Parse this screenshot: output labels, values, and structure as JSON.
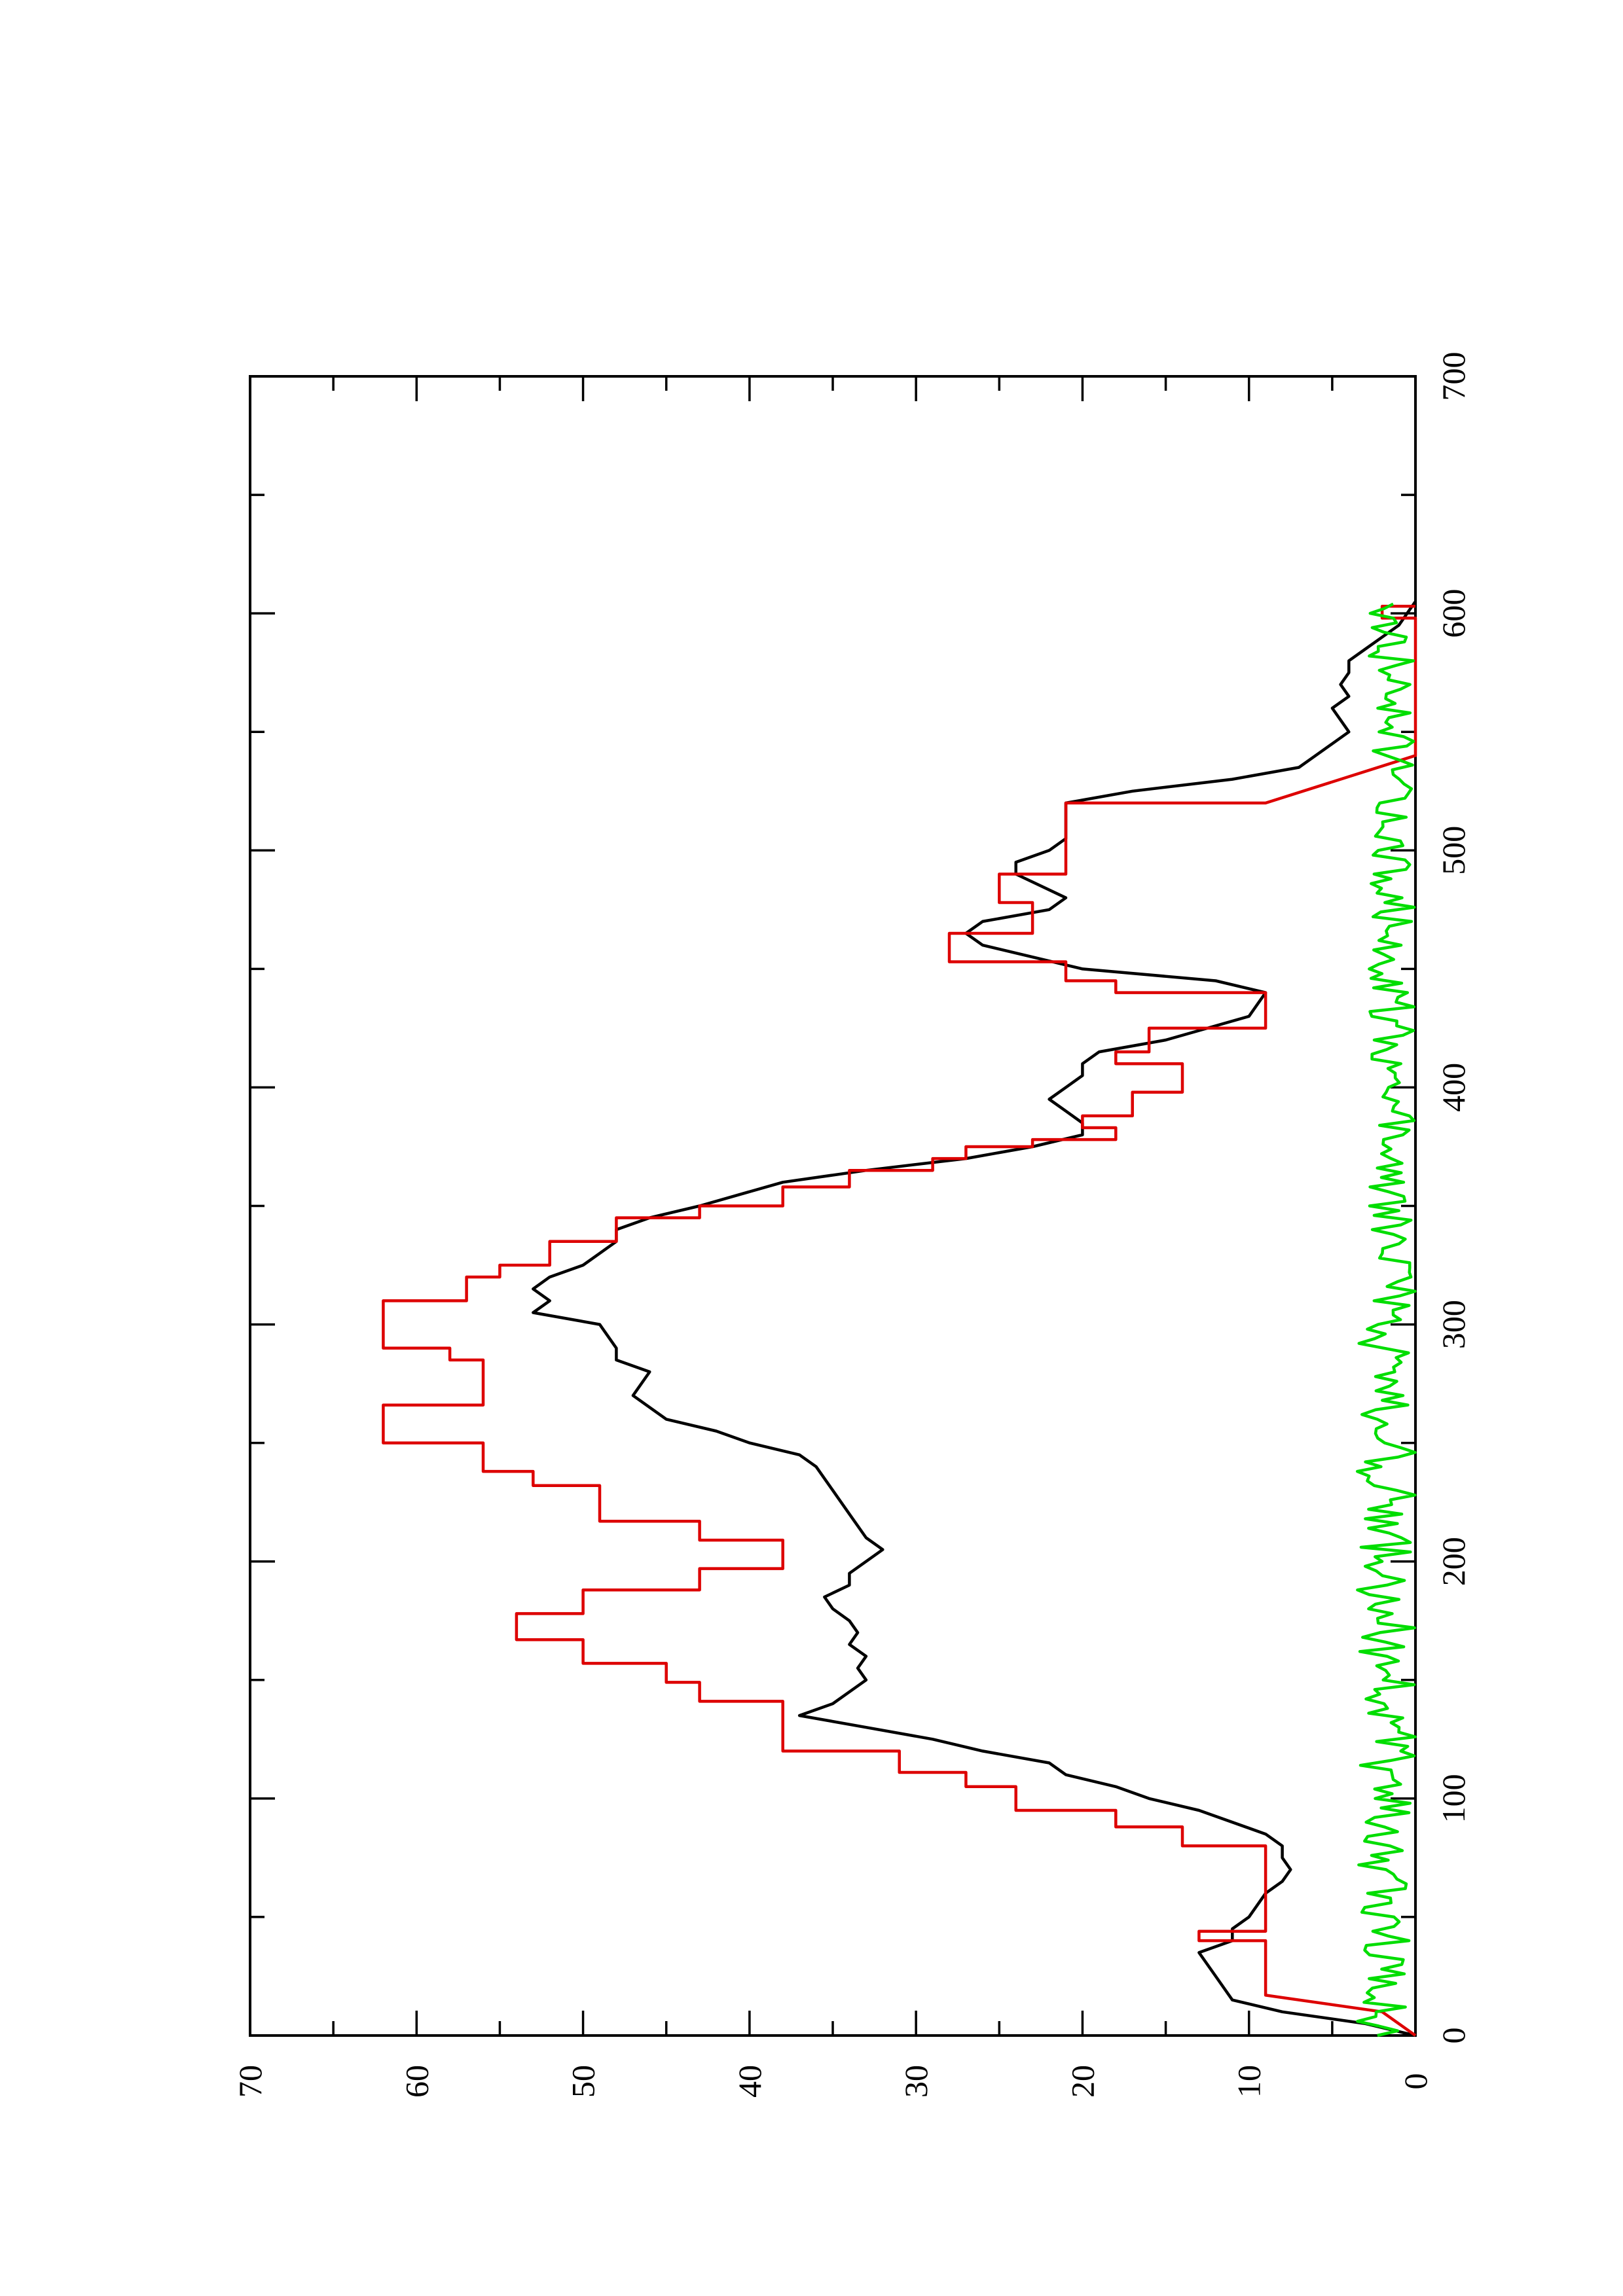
{
  "chart_data": {
    "type": "line",
    "title": "",
    "xlabel": "",
    "ylabel": "",
    "orientation": "rotated-90-counterclockwise",
    "xlim": [
      0,
      700
    ],
    "ylim": [
      0,
      70
    ],
    "x_ticks": [
      "0",
      "100",
      "200",
      "300",
      "400",
      "500",
      "600",
      "700"
    ],
    "y_ticks": [
      "0",
      "10",
      "20",
      "30",
      "40",
      "50",
      "60",
      "70"
    ],
    "grid": false,
    "legend": "none",
    "series": [
      {
        "color": "#000000",
        "style": "smooth",
        "points": [
          [
            0,
            0
          ],
          [
            5,
            3
          ],
          [
            10,
            8
          ],
          [
            15,
            11
          ],
          [
            25,
            12
          ],
          [
            35,
            13
          ],
          [
            40,
            11
          ],
          [
            45,
            11
          ],
          [
            50,
            10
          ],
          [
            55,
            9.5
          ],
          [
            60,
            9
          ],
          [
            65,
            8
          ],
          [
            70,
            7.5
          ],
          [
            75,
            8
          ],
          [
            80,
            8
          ],
          [
            85,
            9
          ],
          [
            95,
            13
          ],
          [
            100,
            16
          ],
          [
            105,
            18
          ],
          [
            110,
            21
          ],
          [
            115,
            22
          ],
          [
            120,
            26
          ],
          [
            125,
            29
          ],
          [
            130,
            33
          ],
          [
            135,
            37
          ],
          [
            140,
            35
          ],
          [
            145,
            34
          ],
          [
            150,
            33
          ],
          [
            155,
            33.5
          ],
          [
            160,
            33
          ],
          [
            165,
            34
          ],
          [
            170,
            33.5
          ],
          [
            175,
            34
          ],
          [
            180,
            35
          ],
          [
            185,
            35.5
          ],
          [
            190,
            34
          ],
          [
            195,
            34
          ],
          [
            200,
            33
          ],
          [
            205,
            32
          ],
          [
            210,
            33
          ],
          [
            220,
            34
          ],
          [
            230,
            35
          ],
          [
            240,
            36
          ],
          [
            245,
            37
          ],
          [
            250,
            40
          ],
          [
            255,
            42
          ],
          [
            260,
            45
          ],
          [
            270,
            47
          ],
          [
            280,
            46
          ],
          [
            285,
            48
          ],
          [
            290,
            48
          ],
          [
            295,
            48.5
          ],
          [
            300,
            49
          ],
          [
            305,
            53
          ],
          [
            310,
            52
          ],
          [
            315,
            53
          ],
          [
            320,
            52
          ],
          [
            325,
            50
          ],
          [
            330,
            49
          ],
          [
            335,
            48
          ],
          [
            340,
            48
          ],
          [
            345,
            46
          ],
          [
            350,
            43
          ],
          [
            360,
            38
          ],
          [
            365,
            33
          ],
          [
            370,
            27
          ],
          [
            375,
            23
          ],
          [
            380,
            20
          ],
          [
            385,
            20
          ],
          [
            390,
            21
          ],
          [
            395,
            22
          ],
          [
            400,
            21
          ],
          [
            405,
            20
          ],
          [
            410,
            20
          ],
          [
            415,
            19
          ],
          [
            420,
            15
          ],
          [
            430,
            10
          ],
          [
            440,
            9
          ],
          [
            445,
            12
          ],
          [
            450,
            20
          ],
          [
            460,
            26
          ],
          [
            465,
            27
          ],
          [
            470,
            26
          ],
          [
            475,
            22
          ],
          [
            480,
            21
          ],
          [
            490,
            24
          ],
          [
            495,
            24
          ],
          [
            500,
            22
          ],
          [
            505,
            21
          ],
          [
            510,
            21
          ],
          [
            515,
            21
          ],
          [
            520,
            21
          ],
          [
            525,
            17
          ],
          [
            530,
            11
          ],
          [
            535,
            7
          ],
          [
            540,
            6
          ],
          [
            545,
            5
          ],
          [
            550,
            4
          ],
          [
            555,
            4.5
          ],
          [
            560,
            5
          ],
          [
            565,
            4
          ],
          [
            570,
            4.5
          ],
          [
            575,
            4
          ],
          [
            580,
            4
          ],
          [
            585,
            3
          ],
          [
            590,
            2
          ],
          [
            595,
            1
          ],
          [
            600,
            0.5
          ],
          [
            605,
            0
          ]
        ]
      },
      {
        "color": "#dd0000",
        "style": "step",
        "points": [
          [
            0,
            0
          ],
          [
            10,
            2
          ],
          [
            17,
            9
          ],
          [
            40,
            9
          ],
          [
            40,
            13
          ],
          [
            44,
            13
          ],
          [
            44,
            9
          ],
          [
            80,
            9
          ],
          [
            80,
            14
          ],
          [
            88,
            14
          ],
          [
            88,
            18
          ],
          [
            95,
            18
          ],
          [
            95,
            24
          ],
          [
            105,
            24
          ],
          [
            105,
            27
          ],
          [
            111,
            27
          ],
          [
            111,
            31
          ],
          [
            120,
            31
          ],
          [
            120,
            38
          ],
          [
            141,
            38
          ],
          [
            141,
            43
          ],
          [
            149,
            43
          ],
          [
            149,
            45
          ],
          [
            157,
            45
          ],
          [
            157,
            50
          ],
          [
            167,
            50
          ],
          [
            167,
            54
          ],
          [
            178,
            54
          ],
          [
            178,
            50
          ],
          [
            188,
            50
          ],
          [
            188,
            43
          ],
          [
            197,
            43
          ],
          [
            197,
            38
          ],
          [
            209,
            38
          ],
          [
            209,
            43
          ],
          [
            217,
            43
          ],
          [
            217,
            49
          ],
          [
            232,
            49
          ],
          [
            232,
            53
          ],
          [
            238,
            53
          ],
          [
            238,
            56
          ],
          [
            250,
            56
          ],
          [
            250,
            62
          ],
          [
            266,
            62
          ],
          [
            266,
            56
          ],
          [
            285,
            56
          ],
          [
            285,
            58
          ],
          [
            290,
            58
          ],
          [
            290,
            62
          ],
          [
            310,
            62
          ],
          [
            310,
            57
          ],
          [
            320,
            57
          ],
          [
            320,
            55
          ],
          [
            325,
            55
          ],
          [
            325,
            52
          ],
          [
            335,
            52
          ],
          [
            335,
            48
          ],
          [
            345,
            48
          ],
          [
            345,
            43
          ],
          [
            350,
            43
          ],
          [
            350,
            38
          ],
          [
            358,
            38
          ],
          [
            358,
            34
          ],
          [
            365,
            34
          ],
          [
            365,
            29
          ],
          [
            370,
            29
          ],
          [
            370,
            27
          ],
          [
            375,
            27
          ],
          [
            375,
            23
          ],
          [
            378,
            23
          ],
          [
            378,
            18
          ],
          [
            383,
            18
          ],
          [
            383,
            20
          ],
          [
            388,
            20
          ],
          [
            388,
            17
          ],
          [
            398,
            17
          ],
          [
            398,
            14
          ],
          [
            410,
            14
          ],
          [
            410,
            18
          ],
          [
            415,
            18
          ],
          [
            415,
            16
          ],
          [
            425,
            16
          ],
          [
            425,
            9
          ],
          [
            440,
            9
          ],
          [
            440,
            18
          ],
          [
            445,
            18
          ],
          [
            445,
            21
          ],
          [
            453,
            21
          ],
          [
            453,
            28
          ],
          [
            465,
            28
          ],
          [
            465,
            23
          ],
          [
            478,
            23
          ],
          [
            478,
            25
          ],
          [
            490,
            25
          ],
          [
            490,
            21
          ],
          [
            520,
            21
          ],
          [
            520,
            9
          ],
          [
            540,
            0
          ],
          [
            598,
            0
          ],
          [
            598,
            2
          ],
          [
            603,
            2
          ],
          [
            603,
            0
          ]
        ]
      },
      {
        "color": "#00dd00",
        "style": "noise",
        "x_range": [
          0,
          605
        ],
        "y_range": [
          0,
          3.5
        ]
      }
    ]
  }
}
